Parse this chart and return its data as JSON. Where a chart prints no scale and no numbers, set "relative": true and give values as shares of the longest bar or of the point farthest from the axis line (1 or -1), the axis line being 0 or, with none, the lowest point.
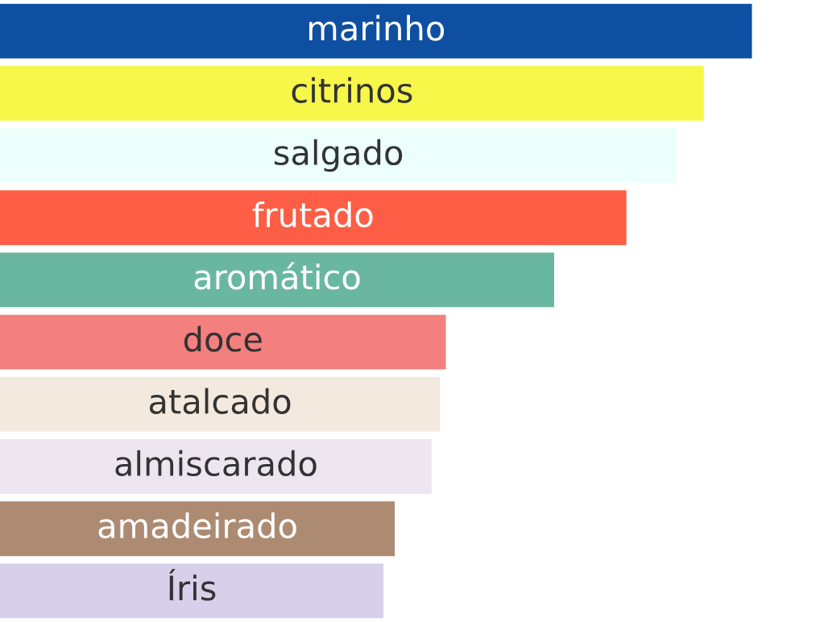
{
  "chart_data": {
    "type": "bar",
    "orientation": "horizontal",
    "relative": true,
    "categories": [
      "marinho",
      "citrinos",
      "salgado",
      "frutado",
      "aromático",
      "doce",
      "atalcado",
      "almiscarado",
      "amadeirado",
      "Íris"
    ],
    "values": [
      1,
      0.936,
      0.9,
      0.833,
      0.737,
      0.593,
      0.585,
      0.574,
      0.525,
      0.51
    ],
    "colors": [
      "#0e4fa1",
      "#f7f74a",
      "#ecfffb",
      "#fd5e45",
      "#6ab7a0",
      "#f47f7f",
      "#f4e9df",
      "#ede6f0",
      "#ad8b73",
      "#d7d0ea"
    ]
  }
}
